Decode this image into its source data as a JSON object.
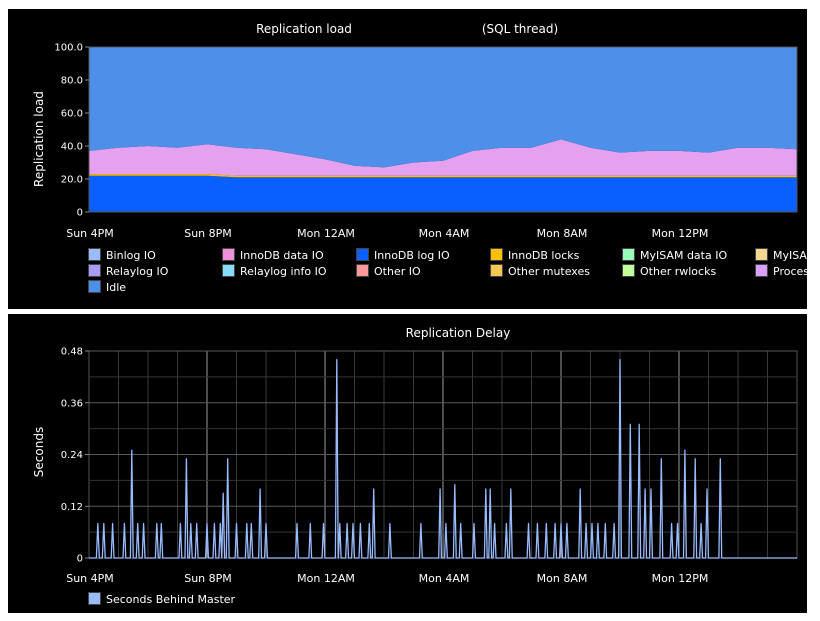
{
  "chart_data": [
    {
      "type": "area",
      "title": "Replication load",
      "subtitle": "(SQL thread)",
      "xlabel": "",
      "ylabel": "Replication load",
      "ylim": [
        0,
        100
      ],
      "yticks": [
        "100.0",
        "80.0",
        "60.0",
        "40.0",
        "20.0",
        "0"
      ],
      "xticks": [
        "Sun  4PM",
        "Sun  8PM",
        "Mon 12AM",
        "Mon  4AM",
        "Mon  8AM",
        "Mon 12PM"
      ],
      "stacked": true,
      "legend_position": "bottom",
      "x_hours": [
        0,
        1,
        2,
        3,
        4,
        5,
        6,
        7,
        8,
        9,
        10,
        11,
        12,
        13,
        14,
        15,
        16,
        17,
        18,
        19,
        20,
        21,
        22,
        23,
        24
      ],
      "series": [
        {
          "name": "InnoDB log IO",
          "color": "#0a5fff",
          "values": [
            22,
            22,
            22,
            22,
            22,
            21,
            21,
            21,
            21,
            21,
            21,
            21,
            21,
            21,
            21,
            21,
            21,
            21,
            21,
            21,
            21,
            21,
            21,
            21,
            21
          ]
        },
        {
          "name": "InnoDB locks",
          "color": "#ffc000",
          "values": [
            1,
            1,
            1,
            1,
            1,
            1,
            1,
            1,
            1,
            1,
            1,
            1,
            1,
            1,
            1,
            1,
            1,
            1,
            1,
            1,
            1,
            1,
            1,
            1,
            1
          ]
        },
        {
          "name": "Process",
          "color": "#e6a0f0",
          "values": [
            14,
            16,
            17,
            16,
            18,
            17,
            16,
            13,
            10,
            6,
            5,
            8,
            9,
            15,
            17,
            17,
            22,
            17,
            14,
            15,
            15,
            14,
            17,
            17,
            16
          ]
        },
        {
          "name": "Idle",
          "color": "#4e8fea",
          "values": [
            63,
            61,
            60,
            61,
            59,
            61,
            62,
            65,
            68,
            72,
            73,
            70,
            69,
            63,
            61,
            61,
            56,
            61,
            64,
            63,
            63,
            64,
            61,
            61,
            62
          ]
        }
      ],
      "legend": [
        {
          "name": "Binlog IO",
          "color": "#99bbff"
        },
        {
          "name": "InnoDB data IO",
          "color": "#f090d8"
        },
        {
          "name": "InnoDB log IO",
          "color": "#0a5fff"
        },
        {
          "name": "InnoDB locks",
          "color": "#ffc000"
        },
        {
          "name": "MyISAM data IO",
          "color": "#99ffbb"
        },
        {
          "name": "MyISA",
          "color": "#f5d890"
        },
        {
          "name": "Relaylog IO",
          "color": "#a99cf5"
        },
        {
          "name": "Relaylog info IO",
          "color": "#88ddff"
        },
        {
          "name": "Other IO",
          "color": "#ff9999"
        },
        {
          "name": "Other mutexes",
          "color": "#f5c850"
        },
        {
          "name": "Other rwlocks",
          "color": "#c0ff99"
        },
        {
          "name": "Proces",
          "color": "#d9a0f5"
        },
        {
          "name": "Idle",
          "color": "#4e8fea"
        }
      ]
    },
    {
      "type": "line",
      "title": "Replication Delay",
      "xlabel": "",
      "ylabel": "Seconds",
      "ylim": [
        0,
        0.48
      ],
      "yticks": [
        "0.48",
        "0.36",
        "0.24",
        "0.12",
        "0"
      ],
      "xticks": [
        "Sun  4PM",
        "Sun  8PM",
        "Mon 12AM",
        "Mon  4AM",
        "Mon  8AM",
        "Mon 12PM"
      ],
      "grid": true,
      "legend_position": "bottom",
      "series": [
        {
          "name": "Seconds Behind Master",
          "color": "#99bbff",
          "spikes": [
            [
              0.3,
              0.08
            ],
            [
              0.5,
              0.08
            ],
            [
              0.8,
              0.08
            ],
            [
              1.2,
              0.08
            ],
            [
              1.45,
              0.25
            ],
            [
              1.65,
              0.08
            ],
            [
              1.85,
              0.08
            ],
            [
              2.3,
              0.08
            ],
            [
              2.45,
              0.08
            ],
            [
              3.1,
              0.08
            ],
            [
              3.3,
              0.23
            ],
            [
              3.45,
              0.08
            ],
            [
              3.65,
              0.08
            ],
            [
              4.0,
              0.08
            ],
            [
              4.25,
              0.08
            ],
            [
              4.45,
              0.08
            ],
            [
              4.55,
              0.15
            ],
            [
              4.7,
              0.23
            ],
            [
              5.0,
              0.08
            ],
            [
              5.35,
              0.08
            ],
            [
              5.5,
              0.08
            ],
            [
              5.8,
              0.16
            ],
            [
              6.0,
              0.08
            ],
            [
              7.05,
              0.08
            ],
            [
              7.5,
              0.08
            ],
            [
              7.95,
              0.08
            ],
            [
              8.4,
              0.46
            ],
            [
              8.5,
              0.08
            ],
            [
              8.75,
              0.08
            ],
            [
              8.95,
              0.08
            ],
            [
              9.2,
              0.08
            ],
            [
              9.5,
              0.08
            ],
            [
              9.65,
              0.16
            ],
            [
              10.2,
              0.08
            ],
            [
              11.25,
              0.08
            ],
            [
              11.9,
              0.16
            ],
            [
              12.1,
              0.08
            ],
            [
              12.4,
              0.17
            ],
            [
              12.6,
              0.08
            ],
            [
              13.05,
              0.08
            ],
            [
              13.45,
              0.16
            ],
            [
              13.6,
              0.16
            ],
            [
              13.75,
              0.08
            ],
            [
              14.15,
              0.08
            ],
            [
              14.3,
              0.16
            ],
            [
              14.9,
              0.08
            ],
            [
              15.2,
              0.08
            ],
            [
              15.5,
              0.08
            ],
            [
              15.8,
              0.08
            ],
            [
              16.0,
              0.08
            ],
            [
              16.2,
              0.08
            ],
            [
              16.65,
              0.16
            ],
            [
              16.85,
              0.08
            ],
            [
              17.05,
              0.08
            ],
            [
              17.25,
              0.08
            ],
            [
              17.5,
              0.08
            ],
            [
              17.8,
              0.08
            ],
            [
              18.0,
              0.46
            ],
            [
              18.35,
              0.31
            ],
            [
              18.65,
              0.31
            ],
            [
              18.85,
              0.16
            ],
            [
              19.05,
              0.16
            ],
            [
              19.4,
              0.23
            ],
            [
              19.75,
              0.08
            ],
            [
              19.95,
              0.08
            ],
            [
              20.2,
              0.25
            ],
            [
              20.55,
              0.23
            ],
            [
              20.75,
              0.08
            ],
            [
              20.95,
              0.16
            ],
            [
              21.4,
              0.23
            ]
          ]
        }
      ]
    }
  ]
}
